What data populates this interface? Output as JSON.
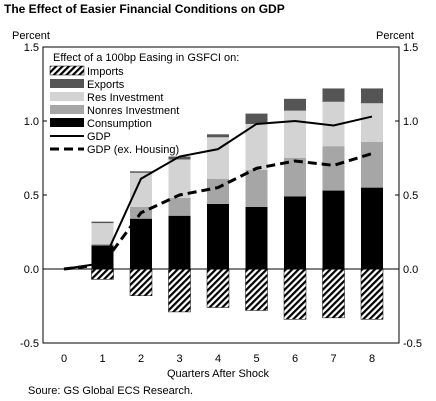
{
  "chart_data": {
    "type": "bar",
    "title": "The Effect of Easier Financial Conditions on GDP",
    "ylabel_left": "Percent",
    "ylabel_right": "Percent",
    "xlabel": "Quarters After Shock",
    "source": "Soure: GS Global ECS Research.",
    "legend_title": "Effect of a 100bp Easing in GSFCI on:",
    "legend_position": "top-left",
    "categories": [
      "0",
      "1",
      "2",
      "3",
      "4",
      "5",
      "6",
      "7",
      "8"
    ],
    "ylim": [
      -0.5,
      1.5
    ],
    "yticks": [
      "-0.5",
      "0.0",
      "0.5",
      "1.0",
      "1.5"
    ],
    "grid": false,
    "stack_order": [
      "Consumption",
      "Nonres Investment",
      "Res Investment",
      "Exports"
    ],
    "bar_series": [
      {
        "name": "Imports",
        "pattern": "diagonal-hatch",
        "values": [
          0,
          -0.07,
          -0.18,
          -0.29,
          -0.26,
          -0.28,
          -0.34,
          -0.33,
          -0.34
        ]
      },
      {
        "name": "Exports",
        "color": "#555555",
        "values": [
          0,
          0.01,
          0.01,
          0.02,
          0.02,
          0.07,
          0.08,
          0.09,
          0.1
        ]
      },
      {
        "name": "Res Investment",
        "color": "#d3d3d3",
        "values": [
          0,
          0.14,
          0.23,
          0.26,
          0.28,
          0.31,
          0.32,
          0.3,
          0.26
        ]
      },
      {
        "name": "Nonres Investment",
        "color": "#a6a6a6",
        "values": [
          0,
          0.01,
          0.08,
          0.12,
          0.17,
          0.25,
          0.26,
          0.3,
          0.31
        ]
      },
      {
        "name": "Consumption",
        "color": "#000000",
        "values": [
          0,
          0.16,
          0.34,
          0.36,
          0.44,
          0.42,
          0.49,
          0.53,
          0.55
        ]
      }
    ],
    "line_series": [
      {
        "name": "GDP",
        "style": "solid",
        "values": [
          0,
          0.04,
          0.61,
          0.76,
          0.81,
          0.98,
          1.0,
          0.97,
          1.03
        ]
      },
      {
        "name": "GDP (ex. Housing)",
        "style": "dashed",
        "values": [
          0,
          0.03,
          0.38,
          0.5,
          0.55,
          0.68,
          0.73,
          0.7,
          0.78
        ]
      }
    ]
  }
}
